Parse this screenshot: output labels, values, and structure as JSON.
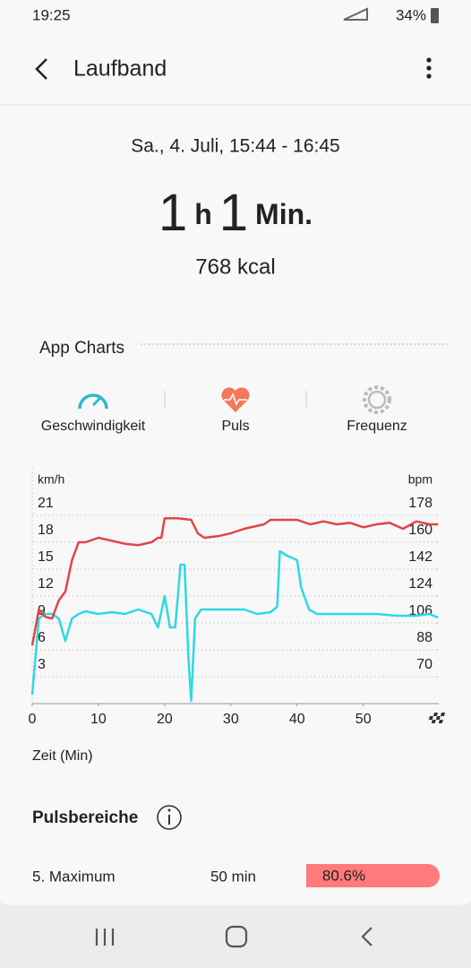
{
  "status_bar": {
    "time": "19:25",
    "battery": "34%"
  },
  "header": {
    "title": "Laufband"
  },
  "summary": {
    "date": "Sa., 4. Juli, 15:44 - 16:45",
    "hours": "1",
    "hours_unit": "h",
    "minutes": "1",
    "minutes_unit": "Min.",
    "calories": "768 kcal"
  },
  "section_title": "App Charts",
  "tabs": [
    "Geschwindigkeit",
    "Puls",
    "Frequenz"
  ],
  "chart_data": {
    "type": "line",
    "y_label": "km/h",
    "y2_label": "bpm",
    "x_label": "Zeit (Min)",
    "xlim": [
      0,
      61.4
    ],
    "xticks": [
      0,
      10,
      20,
      30,
      40,
      50
    ],
    "ylim": [
      0,
      26
    ],
    "yticks": [
      3,
      6,
      9,
      12,
      15,
      18,
      21
    ],
    "y2lim": [
      52,
      208
    ],
    "y2ticks": [
      70,
      88,
      106,
      124,
      142,
      160,
      178
    ],
    "grid": true,
    "series": [
      {
        "name": "Geschwindigkeit",
        "color": "#2fd8e2",
        "x": [
          0,
          1,
          2,
          3,
          4,
          5,
          6,
          7,
          8,
          10,
          12,
          14,
          16,
          18,
          19,
          20,
          20.8,
          21.6,
          22.4,
          23,
          23.6,
          24,
          24.6,
          25.5,
          27,
          30,
          32,
          34,
          36,
          37,
          37.4,
          38.5,
          40,
          40.6,
          41.8,
          43,
          45,
          48,
          50,
          52,
          55,
          58,
          60,
          61.3
        ],
        "values": [
          1,
          9.5,
          10,
          10,
          9.5,
          7,
          9.5,
          10,
          10.3,
          10,
          10.2,
          10,
          10.5,
          10,
          8.5,
          12,
          8.5,
          8.5,
          15.5,
          15.5,
          5,
          0.3,
          9.5,
          10.5,
          10.5,
          10.5,
          10.5,
          10,
          10.2,
          10.8,
          17,
          16.5,
          16,
          13,
          10.5,
          10,
          10,
          10,
          10,
          10,
          9.8,
          9.8,
          10,
          9.6
        ]
      },
      {
        "name": "Puls",
        "color": "#e04545",
        "axis": "y2",
        "x": [
          0,
          1,
          2,
          3,
          4,
          5,
          6,
          7,
          8,
          10,
          12,
          14,
          16,
          18,
          19,
          19.5,
          20,
          22,
          24,
          25,
          26,
          28,
          30,
          32,
          35,
          36,
          40,
          42,
          44,
          46,
          48,
          50,
          52,
          54,
          56,
          58,
          60,
          61.3
        ],
        "values": [
          91,
          115,
          110,
          109,
          121,
          127,
          148,
          160,
          160,
          163,
          161,
          159,
          158,
          160,
          163,
          163,
          176,
          176,
          175,
          166,
          163,
          164,
          166,
          169,
          172,
          175,
          175,
          172,
          174,
          172,
          173,
          170,
          172,
          173,
          169,
          174,
          172,
          172
        ]
      }
    ]
  },
  "zones": {
    "title": "Pulsbereiche",
    "rows": [
      {
        "name": "5. Maximum",
        "time": "50 min",
        "share": "80.6%"
      }
    ]
  }
}
